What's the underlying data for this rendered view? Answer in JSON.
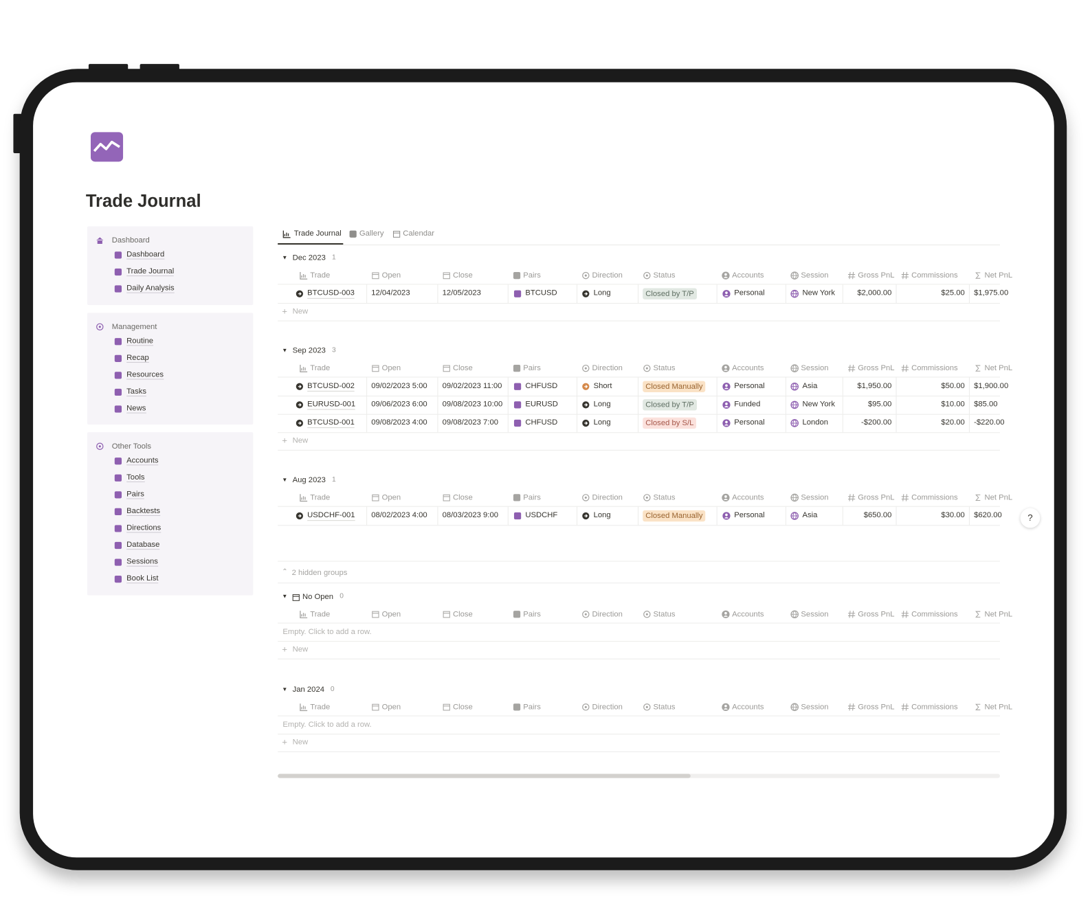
{
  "page": {
    "title": "Trade Journal"
  },
  "sidebar": [
    {
      "heading": "Dashboard",
      "items": [
        "Dashboard",
        "Trade Journal",
        "Daily Analysis"
      ]
    },
    {
      "heading": "Management",
      "items": [
        "Routine",
        "Recap",
        "Resources",
        "Tasks",
        "News"
      ]
    },
    {
      "heading": "Other Tools",
      "items": [
        "Accounts",
        "Tools",
        "Pairs",
        "Backtests",
        "Directions",
        "Database",
        "Sessions",
        "Book List"
      ]
    }
  ],
  "tabs": [
    "Trade Journal",
    "Gallery",
    "Calendar"
  ],
  "columns": [
    "Trade",
    "Open",
    "Close",
    "Pairs",
    "Direction",
    "Status",
    "Accounts",
    "Session",
    "Gross PnL",
    "Commissions",
    "Net PnL"
  ],
  "new_label": "New",
  "empty_label": "Empty. Click to add a row.",
  "hidden_groups": "2 hidden groups",
  "help": "?",
  "status_colors": {
    "Closed by T/P": {
      "bg": "#e1e8e2",
      "fg": "#5f6f63"
    },
    "Closed Manually": {
      "bg": "#fae2c6",
      "fg": "#9a6430"
    },
    "Closed by S/L": {
      "bg": "#fbe1dc",
      "fg": "#a5574a"
    }
  },
  "direction_colors": {
    "Long": "#37352f",
    "Short": "#d5894a"
  },
  "groups": [
    {
      "label": "Dec 2023",
      "count": 1,
      "rows": [
        {
          "trade": "BTCUSD-003",
          "open": "12/04/2023",
          "close": "12/05/2023",
          "pair": "BTCUSD",
          "direction": "Long",
          "status": "Closed by T/P",
          "account": "Personal",
          "session": "New York",
          "gross": "$2,000.00",
          "commissions": "$25.00",
          "net": "$1,975.00"
        }
      ]
    },
    {
      "label": "Sep 2023",
      "count": 3,
      "rows": [
        {
          "trade": "BTCUSD-002",
          "open": "09/02/2023 5:00",
          "close": "09/02/2023 11:00",
          "pair": "CHFUSD",
          "direction": "Short",
          "status": "Closed Manually",
          "account": "Personal",
          "session": "Asia",
          "gross": "$1,950.00",
          "commissions": "$50.00",
          "net": "$1,900.00"
        },
        {
          "trade": "EURUSD-001",
          "open": "09/06/2023 6:00",
          "close": "09/08/2023 10:00",
          "pair": "EURUSD",
          "direction": "Long",
          "status": "Closed by T/P",
          "account": "Funded",
          "session": "New York",
          "gross": "$95.00",
          "commissions": "$10.00",
          "net": "$85.00"
        },
        {
          "trade": "BTCUSD-001",
          "open": "09/08/2023 4:00",
          "close": "09/08/2023 7:00",
          "pair": "CHFUSD",
          "direction": "Long",
          "status": "Closed by S/L",
          "account": "Personal",
          "session": "London",
          "gross": "-$200.00",
          "commissions": "$20.00",
          "net": "-$220.00"
        }
      ]
    },
    {
      "label": "Aug 2023",
      "count": 1,
      "rows": [
        {
          "trade": "USDCHF-001",
          "open": "08/02/2023 4:00",
          "close": "08/03/2023 9:00",
          "pair": "USDCHF",
          "direction": "Long",
          "status": "Closed Manually",
          "account": "Personal",
          "session": "Asia",
          "gross": "$650.00",
          "commissions": "$30.00",
          "net": "$620.00"
        }
      ]
    },
    {
      "label": "No Open",
      "count": 0,
      "rows": []
    },
    {
      "label": "Jan 2024",
      "count": 0,
      "rows": []
    }
  ]
}
